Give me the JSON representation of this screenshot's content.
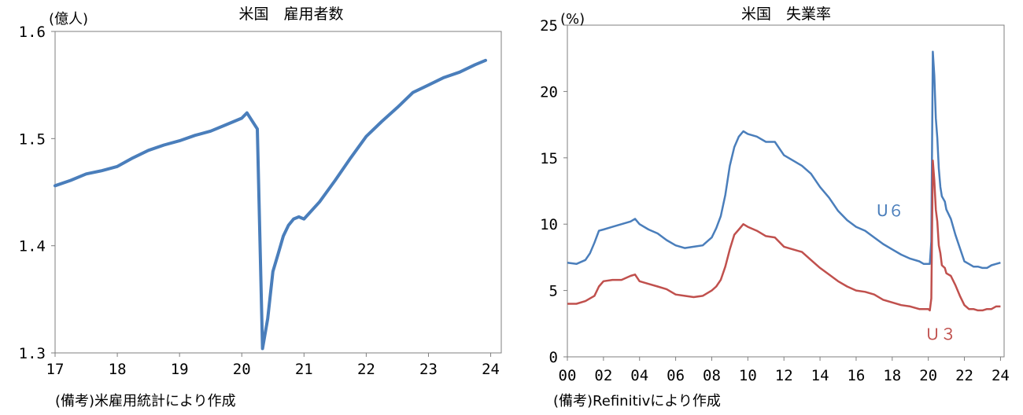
{
  "chart_data": [
    {
      "type": "line",
      "title": "米国　雇用者数",
      "unit_label": "(億人)",
      "note": "(備考)米雇用統計により作成",
      "xlim": [
        2017,
        2024.17
      ],
      "ylim": [
        1.3,
        1.6
      ],
      "x_ticks": [
        17,
        18,
        19,
        20,
        21,
        22,
        23,
        24
      ],
      "y_tick_labels": [
        "1.6",
        "1.5",
        "1.4",
        "1.3"
      ],
      "color": "#4a7ebb",
      "series": [
        {
          "x": [
            2017.0,
            2017.25,
            2017.5,
            2017.75,
            2018.0,
            2018.25,
            2018.5,
            2018.75,
            2019.0,
            2019.25,
            2019.5,
            2019.75,
            2020.0,
            2020.083,
            2020.25,
            2020.333,
            2020.417,
            2020.5,
            2020.583,
            2020.667,
            2020.75,
            2020.833,
            2020.917,
            2021.0,
            2021.25,
            2021.5,
            2021.75,
            2022.0,
            2022.25,
            2022.5,
            2022.75,
            2023.0,
            2023.25,
            2023.5,
            2023.75,
            2023.917
          ],
          "values": [
            1.456,
            1.461,
            1.467,
            1.47,
            1.474,
            1.482,
            1.489,
            1.494,
            1.498,
            1.503,
            1.507,
            1.513,
            1.519,
            1.524,
            1.509,
            1.304,
            1.332,
            1.376,
            1.392,
            1.409,
            1.419,
            1.425,
            1.427,
            1.425,
            1.441,
            1.461,
            1.482,
            1.502,
            1.516,
            1.529,
            1.543,
            1.55,
            1.557,
            1.562,
            1.569,
            1.573
          ]
        }
      ]
    },
    {
      "type": "line",
      "title": "米国　失業率",
      "unit_label": "(%)",
      "note": "(備考)Refinitivにより作成",
      "xlim": [
        2000,
        2024.2
      ],
      "ylim": [
        0,
        25
      ],
      "x_tick_labels": [
        "00",
        "02",
        "04",
        "06",
        "08",
        "10",
        "12",
        "14",
        "16",
        "18",
        "20",
        "22",
        "24"
      ],
      "y_tick_labels": [
        "25",
        "20",
        "15",
        "10",
        "5",
        "0"
      ],
      "series": [
        {
          "name": "U６",
          "color": "#4a7ebb",
          "x": [
            2000.0,
            2000.5,
            2001.0,
            2001.25,
            2001.5,
            2001.75,
            2002.0,
            2002.5,
            2003.0,
            2003.5,
            2003.75,
            2004.0,
            2004.5,
            2005.0,
            2005.5,
            2006.0,
            2006.5,
            2007.0,
            2007.5,
            2008.0,
            2008.25,
            2008.5,
            2008.75,
            2009.0,
            2009.25,
            2009.5,
            2009.75,
            2010.0,
            2010.5,
            2011.0,
            2011.5,
            2012.0,
            2012.5,
            2013.0,
            2013.5,
            2014.0,
            2014.5,
            2015.0,
            2015.5,
            2016.0,
            2016.5,
            2017.0,
            2017.5,
            2018.0,
            2018.5,
            2019.0,
            2019.5,
            2019.75,
            2020.0,
            2020.083,
            2020.167,
            2020.25,
            2020.333,
            2020.417,
            2020.5,
            2020.583,
            2020.667,
            2020.75,
            2020.917,
            2021.0,
            2021.25,
            2021.5,
            2021.75,
            2022.0,
            2022.25,
            2022.5,
            2022.75,
            2023.0,
            2023.25,
            2023.5,
            2023.75,
            2024.0
          ],
          "values": [
            7.1,
            7.0,
            7.3,
            7.8,
            8.6,
            9.5,
            9.6,
            9.8,
            10.0,
            10.2,
            10.4,
            10.0,
            9.6,
            9.3,
            8.8,
            8.4,
            8.2,
            8.3,
            8.4,
            9.0,
            9.7,
            10.6,
            12.2,
            14.4,
            15.8,
            16.6,
            17.0,
            16.8,
            16.6,
            16.2,
            16.2,
            15.2,
            14.8,
            14.4,
            13.8,
            12.8,
            12.0,
            11.0,
            10.3,
            9.8,
            9.5,
            9.0,
            8.5,
            8.1,
            7.7,
            7.4,
            7.2,
            7.0,
            7.0,
            7.0,
            8.7,
            23.0,
            21.2,
            18.0,
            16.5,
            14.2,
            12.8,
            12.1,
            11.7,
            11.1,
            10.4,
            9.2,
            8.2,
            7.2,
            7.0,
            6.8,
            6.8,
            6.7,
            6.7,
            6.9,
            7.0,
            7.1
          ]
        },
        {
          "name": "Ｕ３",
          "color": "#c0504d",
          "x": [
            2000.0,
            2000.5,
            2001.0,
            2001.25,
            2001.5,
            2001.75,
            2002.0,
            2002.5,
            2003.0,
            2003.5,
            2003.75,
            2004.0,
            2004.5,
            2005.0,
            2005.5,
            2006.0,
            2006.5,
            2007.0,
            2007.5,
            2008.0,
            2008.25,
            2008.5,
            2008.75,
            2009.0,
            2009.25,
            2009.5,
            2009.75,
            2010.0,
            2010.5,
            2011.0,
            2011.5,
            2012.0,
            2012.5,
            2013.0,
            2013.5,
            2014.0,
            2014.5,
            2015.0,
            2015.5,
            2016.0,
            2016.5,
            2017.0,
            2017.5,
            2018.0,
            2018.5,
            2019.0,
            2019.5,
            2019.75,
            2020.0,
            2020.083,
            2020.167,
            2020.25,
            2020.333,
            2020.417,
            2020.5,
            2020.583,
            2020.667,
            2020.75,
            2020.917,
            2021.0,
            2021.25,
            2021.5,
            2021.75,
            2022.0,
            2022.25,
            2022.5,
            2022.75,
            2023.0,
            2023.25,
            2023.5,
            2023.75,
            2024.0
          ],
          "values": [
            4.0,
            4.0,
            4.2,
            4.4,
            4.6,
            5.3,
            5.7,
            5.8,
            5.8,
            6.1,
            6.2,
            5.7,
            5.5,
            5.3,
            5.1,
            4.7,
            4.6,
            4.5,
            4.6,
            5.0,
            5.3,
            5.8,
            6.8,
            8.1,
            9.2,
            9.6,
            10.0,
            9.8,
            9.5,
            9.1,
            9.0,
            8.3,
            8.1,
            7.9,
            7.3,
            6.7,
            6.2,
            5.7,
            5.3,
            5.0,
            4.9,
            4.7,
            4.3,
            4.1,
            3.9,
            3.8,
            3.6,
            3.6,
            3.6,
            3.5,
            4.4,
            14.8,
            13.3,
            11.1,
            10.2,
            8.4,
            7.8,
            6.9,
            6.7,
            6.3,
            6.1,
            5.4,
            4.6,
            3.9,
            3.6,
            3.6,
            3.5,
            3.5,
            3.6,
            3.6,
            3.8,
            3.8
          ]
        }
      ]
    }
  ]
}
